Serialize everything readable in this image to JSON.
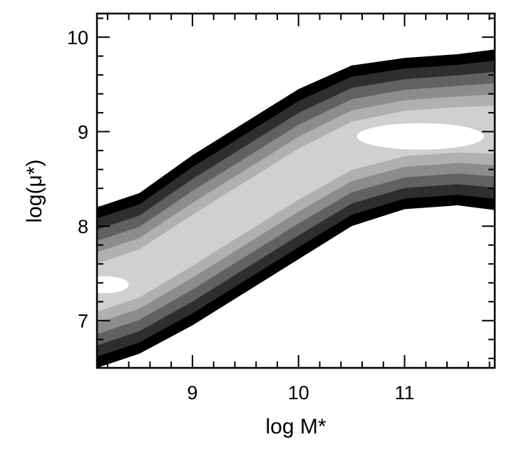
{
  "chart_data": {
    "type": "contour",
    "title": "",
    "xlabel": "log M*",
    "ylabel": "log(μ*)",
    "xlim": [
      8.1,
      11.85
    ],
    "ylim": [
      6.5,
      10.25
    ],
    "x_ticks": [
      9,
      10,
      11
    ],
    "y_ticks": [
      7,
      8,
      9,
      10
    ],
    "x_tick_labels": [
      "9",
      "10",
      "11"
    ],
    "y_tick_labels": [
      "7",
      "8",
      "9",
      "10"
    ],
    "grid": false,
    "legend": "none",
    "levels_fill": [
      "#000000",
      "#2e2e2e",
      "#616161",
      "#8c8c8c",
      "#b0b0b0",
      "#d0d0d0",
      "#ffffff"
    ],
    "ridge": [
      {
        "x": 8.1,
        "y": 7.35,
        "w": 0.85
      },
      {
        "x": 8.5,
        "y": 7.5,
        "w": 0.85
      },
      {
        "x": 9.0,
        "y": 7.85,
        "w": 0.9
      },
      {
        "x": 9.5,
        "y": 8.2,
        "w": 0.9
      },
      {
        "x": 10.0,
        "y": 8.55,
        "w": 0.9
      },
      {
        "x": 10.5,
        "y": 8.85,
        "w": 0.85
      },
      {
        "x": 11.0,
        "y": 8.98,
        "w": 0.8
      },
      {
        "x": 11.5,
        "y": 9.02,
        "w": 0.8
      },
      {
        "x": 11.85,
        "y": 9.02,
        "w": 0.85
      }
    ],
    "peaks": [
      {
        "x": 8.18,
        "y": 7.38
      },
      {
        "x": 11.15,
        "y": 8.95
      }
    ]
  }
}
